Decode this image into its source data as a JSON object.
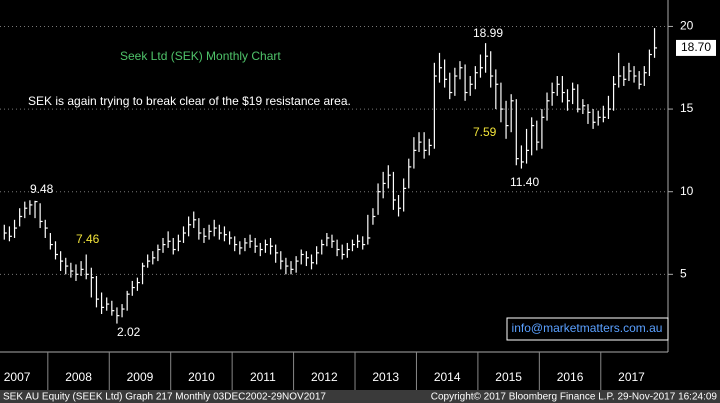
{
  "chart_data": {
    "type": "ohlc",
    "title": "Seek Ltd (SEK) Monthly Chart",
    "subtitle": "SEK is again trying to break clear of the $19 resistance area.",
    "color": "#ffffff",
    "title_color": "#4fc36a",
    "grid": true,
    "ylim": [
      0.3,
      21.6
    ],
    "yticks": [
      5,
      10,
      15,
      20
    ],
    "x_labels": [
      "2007",
      "2008",
      "2009",
      "2010",
      "2011",
      "2012",
      "2013",
      "2014",
      "2015",
      "2016",
      "2017"
    ],
    "high": [
      8.0,
      7.9,
      8.3,
      9.0,
      9.4,
      9.48,
      9.45,
      9.3,
      8.3,
      7.5,
      7.0,
      6.4,
      6.0,
      5.7,
      5.6,
      5.8,
      6.2,
      5.4,
      4.9,
      3.9,
      3.6,
      3.4,
      3.0,
      3.2,
      4.0,
      4.6,
      4.8,
      5.7,
      6.2,
      6.4,
      6.8,
      7.2,
      7.6,
      7.2,
      7.4,
      7.9,
      8.5,
      8.8,
      8.4,
      7.8,
      8.0,
      8.3,
      8.0,
      7.9,
      7.6,
      7.3,
      7.0,
      7.2,
      7.4,
      7.2,
      6.9,
      7.1,
      7.2,
      6.8,
      6.4,
      6.0,
      5.8,
      6.1,
      6.5,
      6.4,
      6.2,
      6.7,
      7.1,
      7.5,
      7.4,
      7.1,
      6.8,
      6.9,
      7.1,
      7.4,
      7.3,
      8.6,
      9.0,
      10.5,
      11.2,
      11.6,
      11.2,
      9.8,
      10.8,
      12.0,
      13.3,
      13.6,
      13.6,
      13.2,
      17.8,
      18.4,
      18.0,
      17.2,
      17.5,
      17.9,
      17.7,
      17.0,
      17.6,
      18.3,
      18.99,
      18.5,
      17.4,
      16.6,
      15.5,
      15.9,
      15.6,
      12.8,
      13.8,
      14.5,
      14.3,
      15.0,
      16.0,
      16.6,
      17.0,
      17.0,
      16.2,
      16.6,
      16.5,
      15.6,
      15.3,
      15.0,
      14.9,
      15.2,
      15.8,
      17.0,
      18.4,
      17.6,
      17.8,
      17.6,
      17.3,
      17.6,
      18.6,
      19.9
    ],
    "low": [
      7.1,
      7.0,
      7.2,
      7.9,
      8.4,
      8.6,
      8.4,
      7.8,
      7.2,
      6.5,
      5.9,
      5.2,
      5.0,
      4.8,
      4.6,
      4.9,
      4.7,
      3.6,
      3.0,
      2.6,
      2.8,
      2.5,
      2.02,
      2.4,
      2.8,
      3.7,
      4.0,
      4.4,
      5.4,
      5.6,
      5.8,
      6.3,
      6.6,
      6.2,
      6.4,
      6.9,
      7.3,
      7.8,
      7.1,
      6.9,
      7.1,
      7.3,
      7.1,
      7.0,
      6.8,
      6.4,
      6.2,
      6.4,
      6.6,
      6.3,
      6.1,
      6.3,
      6.2,
      5.7,
      5.3,
      5.0,
      5.0,
      5.1,
      5.6,
      5.5,
      5.3,
      5.6,
      6.2,
      6.7,
      6.6,
      6.1,
      5.9,
      6.0,
      6.4,
      6.6,
      6.5,
      6.8,
      8.0,
      8.6,
      9.6,
      10.2,
      8.9,
      8.5,
      8.8,
      10.2,
      11.4,
      12.4,
      12.0,
      12.2,
      12.6,
      16.6,
      16.3,
      15.6,
      15.8,
      16.8,
      15.5,
      15.8,
      16.2,
      16.9,
      17.2,
      16.3,
      15.0,
      14.2,
      13.2,
      13.6,
      11.6,
      11.4,
      11.7,
      12.2,
      12.5,
      12.6,
      14.3,
      15.2,
      15.8,
      15.4,
      14.9,
      15.3,
      14.8,
      14.7,
      14.1,
      13.8,
      14.0,
      14.2,
      14.4,
      14.9,
      16.3,
      16.4,
      16.7,
      16.6,
      16.2,
      16.4,
      17.0,
      18.1
    ],
    "close": [
      7.5,
      7.3,
      7.8,
      8.5,
      9.0,
      9.2,
      9.4,
      8.2,
      7.8,
      6.8,
      6.2,
      5.8,
      5.5,
      5.2,
      5.0,
      5.3,
      5.0,
      4.8,
      3.5,
      3.0,
      3.2,
      2.8,
      2.5,
      2.9,
      3.8,
      4.2,
      4.5,
      5.5,
      5.8,
      6.0,
      6.5,
      6.8,
      7.0,
      6.5,
      7.0,
      7.5,
      8.0,
      8.3,
      7.5,
      7.3,
      7.6,
      7.8,
      7.5,
      7.4,
      7.2,
      6.8,
      6.6,
      6.9,
      7.0,
      6.7,
      6.5,
      6.8,
      6.7,
      6.3,
      5.8,
      5.5,
      5.3,
      5.8,
      6.2,
      6.0,
      5.7,
      6.3,
      6.8,
      7.2,
      7.0,
      6.5,
      6.2,
      6.5,
      6.8,
      7.0,
      6.8,
      7.2,
      8.5,
      10.0,
      10.5,
      11.0,
      9.5,
      9.0,
      10.2,
      11.5,
      12.5,
      13.0,
      12.5,
      12.8,
      17.0,
      17.5,
      16.8,
      16.0,
      17.0,
      17.5,
      16.0,
      16.5,
      17.2,
      17.5,
      18.2,
      17.0,
      16.5,
      15.0,
      14.0,
      15.5,
      12.0,
      11.8,
      12.5,
      14.0,
      13.0,
      14.5,
      15.5,
      16.0,
      16.5,
      16.0,
      15.5,
      16.2,
      15.0,
      15.2,
      14.8,
      14.2,
      14.5,
      14.5,
      15.0,
      16.5,
      17.0,
      16.8,
      17.3,
      17.0,
      16.5,
      17.2,
      18.3,
      18.7
    ],
    "last_price": {
      "value": 18.7,
      "label": "18.70"
    },
    "annotations": [
      {
        "text": "9.48",
        "color": "#ffffff"
      },
      {
        "text": "7.46",
        "color": "#f2e43a"
      },
      {
        "text": "2.02",
        "color": "#ffffff"
      },
      {
        "text": "18.99",
        "color": "#ffffff"
      },
      {
        "text": "7.59",
        "color": "#f2e43a"
      },
      {
        "text": "11.40",
        "color": "#ffffff"
      }
    ],
    "watermark": "info@marketmatters.com.au",
    "footer_left": "SEK AU Equity (SEEK Ltd) Graph 217  Monthly 03DEC2002-29NOV2017",
    "footer_right": "Copyright© 2017 Bloomberg Finance L.P.      29-Nov-2017 16:24:09"
  }
}
